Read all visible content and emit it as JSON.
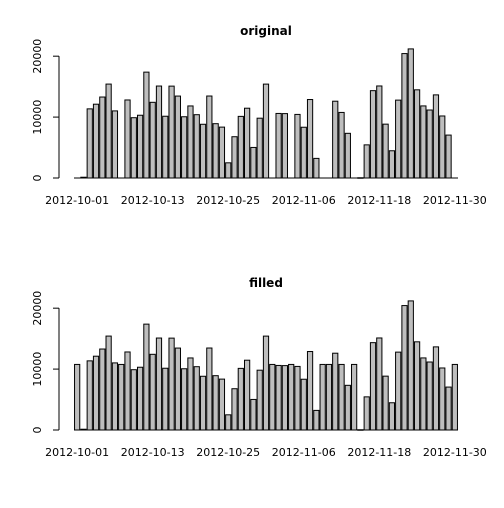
{
  "chart_data": [
    {
      "type": "bar",
      "title": "original",
      "xlabel": "",
      "ylabel": "",
      "ylim": [
        0,
        22000
      ],
      "yticks": [
        0,
        10000,
        20000
      ],
      "ytick_labels": [
        "0",
        "10000",
        "20000"
      ],
      "categories": [
        "2012-10-01",
        "2012-10-02",
        "2012-10-03",
        "2012-10-04",
        "2012-10-05",
        "2012-10-06",
        "2012-10-07",
        "2012-10-08",
        "2012-10-09",
        "2012-10-10",
        "2012-10-11",
        "2012-10-12",
        "2012-10-13",
        "2012-10-14",
        "2012-10-15",
        "2012-10-16",
        "2012-10-17",
        "2012-10-18",
        "2012-10-19",
        "2012-10-20",
        "2012-10-21",
        "2012-10-22",
        "2012-10-23",
        "2012-10-24",
        "2012-10-25",
        "2012-10-26",
        "2012-10-27",
        "2012-10-28",
        "2012-10-29",
        "2012-10-30",
        "2012-10-31",
        "2012-11-01",
        "2012-11-02",
        "2012-11-03",
        "2012-11-04",
        "2012-11-05",
        "2012-11-06",
        "2012-11-07",
        "2012-11-08",
        "2012-11-09",
        "2012-11-10",
        "2012-11-11",
        "2012-11-12",
        "2012-11-13",
        "2012-11-14",
        "2012-11-15",
        "2012-11-16",
        "2012-11-17",
        "2012-11-18",
        "2012-11-19",
        "2012-11-20",
        "2012-11-21",
        "2012-11-22",
        "2012-11-23",
        "2012-11-24",
        "2012-11-25",
        "2012-11-26",
        "2012-11-27",
        "2012-11-28",
        "2012-11-29",
        "2012-11-30"
      ],
      "xtick_labels": [
        "2012-10-01",
        "2012-10-13",
        "2012-10-25",
        "2012-11-06",
        "2012-11-18",
        "2012-11-30"
      ],
      "values": [
        null,
        126,
        11352,
        12116,
        13294,
        15420,
        11015,
        null,
        12811,
        9900,
        10304,
        17382,
        12426,
        15098,
        10139,
        15084,
        13452,
        10056,
        11829,
        10395,
        8821,
        13460,
        8918,
        8355,
        2492,
        6778,
        10119,
        11458,
        5018,
        9819,
        15414,
        null,
        10600,
        10571,
        null,
        10439,
        8334,
        12883,
        3219,
        null,
        null,
        12608,
        10765,
        7336,
        null,
        41,
        5441,
        14339,
        15110,
        8841,
        4472,
        12787,
        20427,
        21194,
        14478,
        11834,
        11162,
        13646,
        10183,
        7047,
        null
      ]
    },
    {
      "type": "bar",
      "title": "filled",
      "xlabel": "",
      "ylabel": "",
      "ylim": [
        0,
        22000
      ],
      "yticks": [
        0,
        10000,
        20000
      ],
      "ytick_labels": [
        "0",
        "10000",
        "20000"
      ],
      "categories": [
        "2012-10-01",
        "2012-10-02",
        "2012-10-03",
        "2012-10-04",
        "2012-10-05",
        "2012-10-06",
        "2012-10-07",
        "2012-10-08",
        "2012-10-09",
        "2012-10-10",
        "2012-10-11",
        "2012-10-12",
        "2012-10-13",
        "2012-10-14",
        "2012-10-15",
        "2012-10-16",
        "2012-10-17",
        "2012-10-18",
        "2012-10-19",
        "2012-10-20",
        "2012-10-21",
        "2012-10-22",
        "2012-10-23",
        "2012-10-24",
        "2012-10-25",
        "2012-10-26",
        "2012-10-27",
        "2012-10-28",
        "2012-10-29",
        "2012-10-30",
        "2012-10-31",
        "2012-11-01",
        "2012-11-02",
        "2012-11-03",
        "2012-11-04",
        "2012-11-05",
        "2012-11-06",
        "2012-11-07",
        "2012-11-08",
        "2012-11-09",
        "2012-11-10",
        "2012-11-11",
        "2012-11-12",
        "2012-11-13",
        "2012-11-14",
        "2012-11-15",
        "2012-11-16",
        "2012-11-17",
        "2012-11-18",
        "2012-11-19",
        "2012-11-20",
        "2012-11-21",
        "2012-11-22",
        "2012-11-23",
        "2012-11-24",
        "2012-11-25",
        "2012-11-26",
        "2012-11-27",
        "2012-11-28",
        "2012-11-29",
        "2012-11-30"
      ],
      "xtick_labels": [
        "2012-10-01",
        "2012-10-13",
        "2012-10-25",
        "2012-11-06",
        "2012-11-18",
        "2012-11-30"
      ],
      "values": [
        10766,
        126,
        11352,
        12116,
        13294,
        15420,
        11015,
        10766,
        12811,
        9900,
        10304,
        17382,
        12426,
        15098,
        10139,
        15084,
        13452,
        10056,
        11829,
        10395,
        8821,
        13460,
        8918,
        8355,
        2492,
        6778,
        10119,
        11458,
        5018,
        9819,
        15414,
        10766,
        10600,
        10571,
        10766,
        10439,
        8334,
        12883,
        3219,
        10766,
        10766,
        12608,
        10765,
        7336,
        10766,
        41,
        5441,
        14339,
        15110,
        8841,
        4472,
        12787,
        20427,
        21194,
        14478,
        11834,
        11162,
        13646,
        10183,
        7047,
        10766
      ]
    }
  ]
}
